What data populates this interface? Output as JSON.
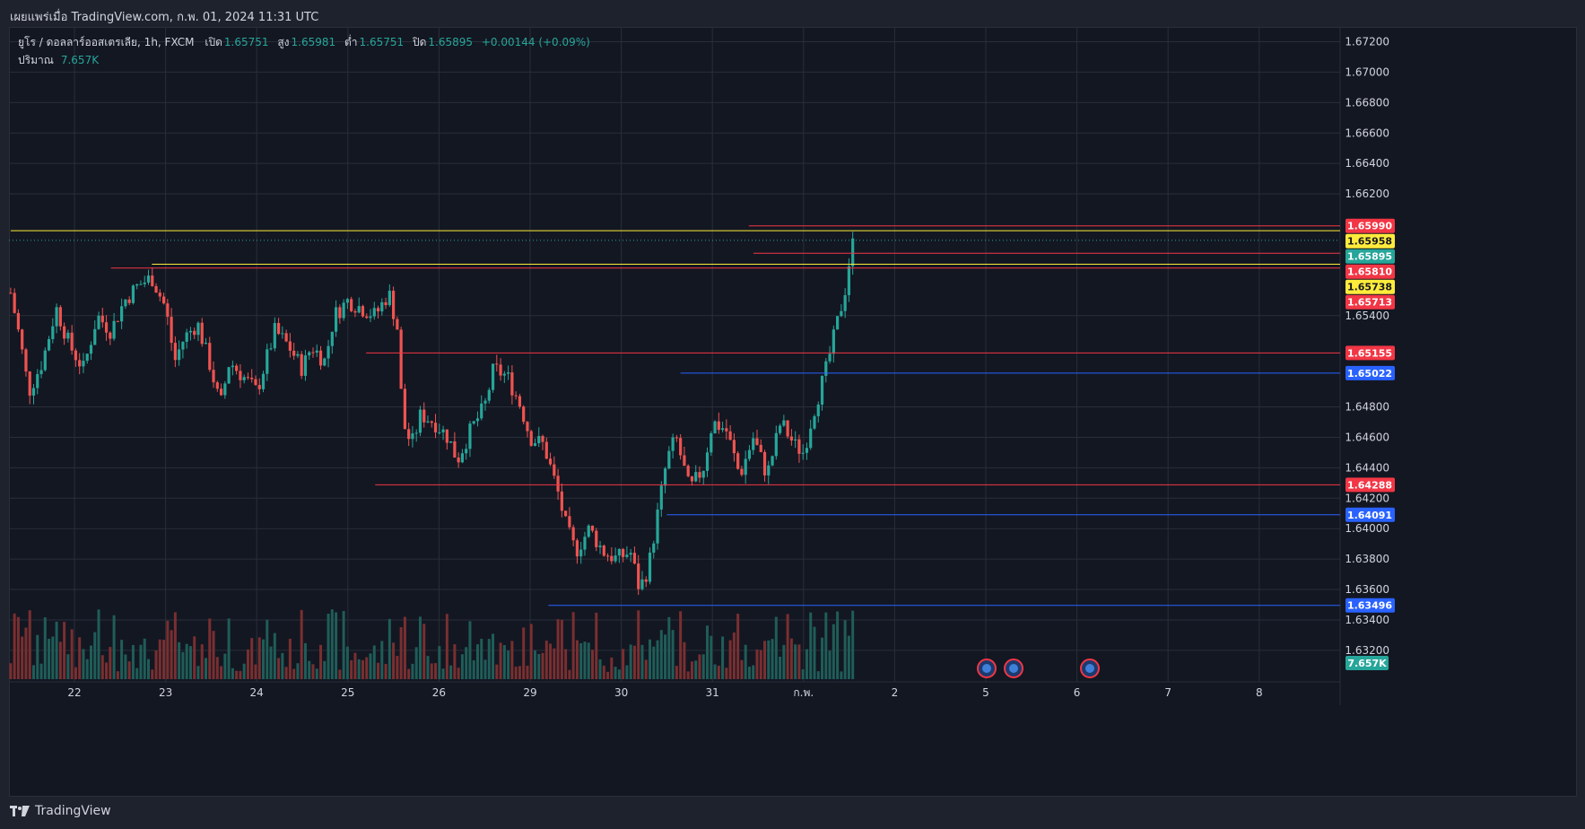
{
  "header": {
    "published": "เผยแพร่เมื่อ TradingView.com, ก.พ. 01, 2024 11:31 UTC"
  },
  "legend": {
    "title": "ยูโร / ดอลลาร์ออสเตรเลีย, 1h, FXCM",
    "open_label": "เปิด",
    "open": "1.65751",
    "high_label": "สูง",
    "high": "1.65981",
    "low_label": "ต่ำ",
    "low": "1.65751",
    "close_label": "ปิด",
    "close": "1.65895",
    "change": "+0.00144 (+0.09%)",
    "volume_label": "ปริมาณ",
    "volume": "7.657K"
  },
  "footer": {
    "brand": "TradingView"
  },
  "colors": {
    "up": "#26a69a",
    "down": "#ef5350",
    "red_line": "#f23645",
    "blue_line": "#2962ff",
    "yellow_line": "#ffeb3b",
    "grid": "#2a2e39",
    "axis_text": "#d1d4dc"
  },
  "chart_data": {
    "type": "candlestick",
    "symbol": "EURAUD",
    "interval": "1h",
    "ylim": [
      1.6315,
      1.6733
    ],
    "y_ticks": [
      "1.67200",
      "1.67000",
      "1.66800",
      "1.66600",
      "1.66400",
      "1.66200",
      "1.65400",
      "1.64800",
      "1.64600",
      "1.64400",
      "1.64200",
      "1.64000",
      "1.63800",
      "1.63600",
      "1.63400",
      "1.63200"
    ],
    "x_ticks": [
      "22",
      "23",
      "24",
      "25",
      "26",
      "29",
      "30",
      "31",
      "ก.พ.",
      "2",
      "5",
      "6",
      "7",
      "8"
    ],
    "horizontal_levels": [
      {
        "price": 1.6599,
        "label": "1.65990",
        "color": "red",
        "from_date_index": 7.4
      },
      {
        "price": 1.65958,
        "label": "1.65958",
        "color": "yellow",
        "from_date_index": -0.7
      },
      {
        "price": 1.6581,
        "label": "1.65810",
        "color": "red",
        "from_date_index": 7.45
      },
      {
        "price": 1.65738,
        "label": "1.65738",
        "color": "yellow",
        "from_date_index": 0.85
      },
      {
        "price": 1.65713,
        "label": "1.65713",
        "color": "red",
        "from_date_index": 0.4
      },
      {
        "price": 1.65155,
        "label": "1.65155",
        "color": "red",
        "from_date_index": 3.2
      },
      {
        "price": 1.65022,
        "label": "1.65022",
        "color": "blue",
        "from_date_index": 6.65
      },
      {
        "price": 1.64288,
        "label": "1.64288",
        "color": "red",
        "from_date_index": 3.3
      },
      {
        "price": 1.64091,
        "label": "1.64091",
        "color": "blue",
        "from_date_index": 6.5
      },
      {
        "price": 1.63496,
        "label": "1.63496",
        "color": "blue",
        "from_date_index": 5.2
      }
    ],
    "last_price": {
      "price": 1.65895,
      "label": "1.65895"
    },
    "volume_label": "7.657K",
    "close_path": [
      [
        -0.7,
        1.6555
      ],
      [
        -0.6,
        1.6525
      ],
      [
        -0.5,
        1.649
      ],
      [
        -0.35,
        1.651
      ],
      [
        -0.2,
        1.6545
      ],
      [
        -0.05,
        1.652
      ],
      [
        0.1,
        1.6505
      ],
      [
        0.25,
        1.654
      ],
      [
        0.4,
        1.653
      ],
      [
        0.55,
        1.655
      ],
      [
        0.7,
        1.656
      ],
      [
        0.85,
        1.6565
      ],
      [
        1.0,
        1.6545
      ],
      [
        1.1,
        1.651
      ],
      [
        1.2,
        1.6525
      ],
      [
        1.35,
        1.6535
      ],
      [
        1.5,
        1.6505
      ],
      [
        1.6,
        1.648
      ],
      [
        1.7,
        1.651
      ],
      [
        1.85,
        1.65
      ],
      [
        2.0,
        1.649
      ],
      [
        2.1,
        1.651
      ],
      [
        2.2,
        1.653
      ],
      [
        2.35,
        1.652
      ],
      [
        2.5,
        1.6505
      ],
      [
        2.6,
        1.652
      ],
      [
        2.75,
        1.651
      ],
      [
        2.85,
        1.654
      ],
      [
        3.0,
        1.655
      ],
      [
        3.15,
        1.6545
      ],
      [
        3.3,
        1.654
      ],
      [
        3.45,
        1.6555
      ],
      [
        3.55,
        1.653
      ],
      [
        3.6,
        1.647
      ],
      [
        3.7,
        1.6455
      ],
      [
        3.8,
        1.6475
      ],
      [
        3.95,
        1.647
      ],
      [
        4.1,
        1.646
      ],
      [
        4.2,
        1.6445
      ],
      [
        4.35,
        1.6465
      ],
      [
        4.5,
        1.648
      ],
      [
        4.6,
        1.6505
      ],
      [
        4.75,
        1.65
      ],
      [
        4.9,
        1.648
      ],
      [
        5.0,
        1.646
      ],
      [
        5.15,
        1.6455
      ],
      [
        5.3,
        1.6425
      ],
      [
        5.4,
        1.64
      ],
      [
        5.5,
        1.6385
      ],
      [
        5.65,
        1.64
      ],
      [
        5.8,
        1.6385
      ],
      [
        5.95,
        1.638
      ],
      [
        6.1,
        1.6385
      ],
      [
        6.2,
        1.636
      ],
      [
        6.3,
        1.6375
      ],
      [
        6.4,
        1.641
      ],
      [
        6.5,
        1.6445
      ],
      [
        6.6,
        1.646
      ],
      [
        6.75,
        1.6425
      ],
      [
        6.9,
        1.644
      ],
      [
        7.0,
        1.647
      ],
      [
        7.15,
        1.6465
      ],
      [
        7.3,
        1.6435
      ],
      [
        7.45,
        1.646
      ],
      [
        7.6,
        1.6435
      ],
      [
        7.75,
        1.647
      ],
      [
        7.9,
        1.6455
      ],
      [
        8.0,
        1.645
      ],
      [
        8.1,
        1.6475
      ],
      [
        8.25,
        1.6505
      ],
      [
        8.35,
        1.653
      ],
      [
        8.45,
        1.6555
      ],
      [
        8.5,
        1.6575
      ],
      [
        8.55,
        1.659
      ]
    ]
  }
}
